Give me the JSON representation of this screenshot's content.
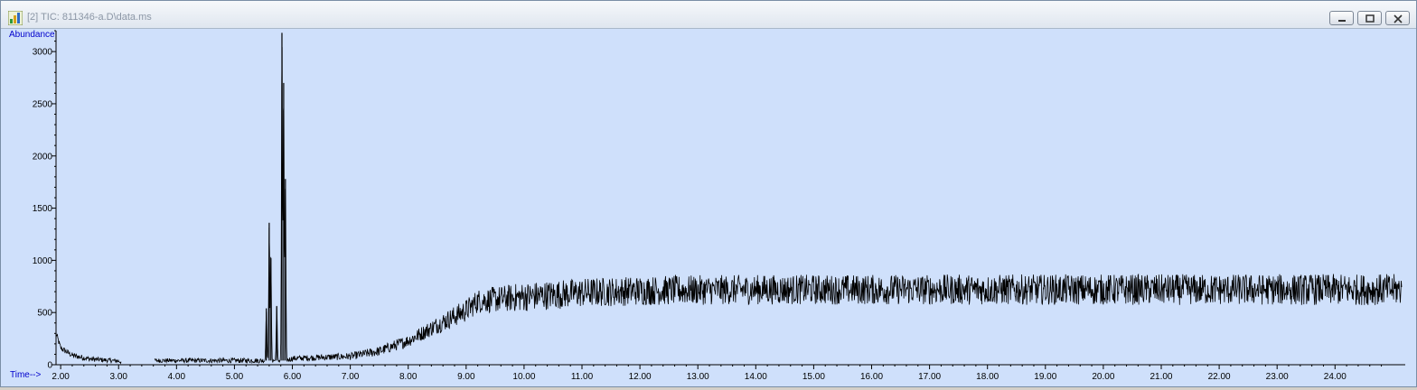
{
  "window": {
    "title": "[2] TIC: 811346-a.D\\data.ms",
    "icon": "chromatogram-app-icon",
    "controls": [
      "minimize-icon",
      "restore-icon",
      "close-icon"
    ]
  },
  "colors": {
    "plot_background": "#cfe0fb",
    "trace": "#000000",
    "axis_label": "#0000cc"
  },
  "chart_data": {
    "type": "line",
    "ylabel": "Abundance",
    "xlabel": "Time-->",
    "xlim": [
      1.92,
      25.15
    ],
    "ylim": [
      0,
      3200
    ],
    "x_ticks": [
      "2.00",
      "3.00",
      "4.00",
      "5.00",
      "6.00",
      "7.00",
      "8.00",
      "9.00",
      "10.00",
      "11.00",
      "12.00",
      "13.00",
      "14.00",
      "15.00",
      "16.00",
      "17.00",
      "18.00",
      "19.00",
      "20.00",
      "21.00",
      "22.00",
      "23.00",
      "24.00"
    ],
    "y_ticks": [
      "0",
      "500",
      "1000",
      "1500",
      "2000",
      "2500",
      "3000"
    ],
    "series": [
      {
        "baseline": [
          [
            1.92,
            300
          ],
          [
            2.0,
            160
          ],
          [
            2.2,
            90
          ],
          [
            2.5,
            55
          ],
          [
            3.0,
            35
          ],
          [
            3.2,
            0
          ],
          [
            3.6,
            0
          ],
          [
            3.62,
            40
          ],
          [
            5.4,
            40
          ],
          [
            5.9,
            40
          ],
          [
            6.0,
            60
          ],
          [
            7.0,
            80
          ],
          [
            7.5,
            130
          ],
          [
            8.0,
            230
          ],
          [
            8.5,
            380
          ],
          [
            9.0,
            520
          ],
          [
            9.2,
            610
          ],
          [
            10.0,
            650
          ],
          [
            11.0,
            690
          ],
          [
            12.0,
            710
          ],
          [
            14.0,
            720
          ],
          [
            17.0,
            720
          ],
          [
            20.0,
            720
          ],
          [
            25.15,
            720
          ]
        ],
        "peaks": [
          {
            "x": 5.55,
            "y": 540
          },
          {
            "x": 5.6,
            "y": 1360
          },
          {
            "x": 5.63,
            "y": 1020
          },
          {
            "x": 5.73,
            "y": 560
          },
          {
            "x": 5.82,
            "y": 3180
          },
          {
            "x": 5.85,
            "y": 2700
          },
          {
            "x": 5.88,
            "y": 1780
          }
        ],
        "noise_amplitude": [
          [
            1.92,
            30
          ],
          [
            3.0,
            20
          ],
          [
            5.9,
            25
          ],
          [
            7.0,
            35
          ],
          [
            8.0,
            60
          ],
          [
            9.0,
            110
          ],
          [
            10.0,
            140
          ],
          [
            25.15,
            150
          ]
        ],
        "gaps": [
          [
            3.05,
            3.62
          ]
        ]
      }
    ]
  }
}
